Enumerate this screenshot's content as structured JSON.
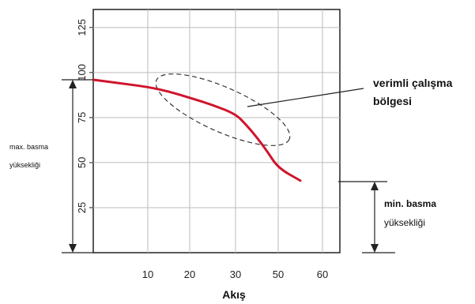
{
  "chart_data": {
    "type": "line",
    "xlabel": "Akış",
    "ylabel": "",
    "x_ticks": [
      "10",
      "20",
      "30",
      "50",
      "60"
    ],
    "y_ticks": [
      "25",
      "50",
      "75",
      "100",
      "125"
    ],
    "ylim": [
      0,
      135
    ],
    "grid": true,
    "series": [
      {
        "color": "#d0142c",
        "points": [
          [
            0,
            96
          ],
          [
            5,
            94
          ],
          [
            10,
            92
          ],
          [
            15,
            89.5
          ],
          [
            20,
            86
          ],
          [
            25,
            82
          ],
          [
            30,
            77
          ],
          [
            35,
            71
          ],
          [
            40,
            64
          ],
          [
            45,
            56
          ],
          [
            50,
            47
          ],
          [
            55,
            40
          ]
        ]
      }
    ],
    "annotations": {
      "efficient_region": "verimli çalışma bölgesi",
      "efficient_region_line1": "verimli çalışma",
      "efficient_region_line2": "bölgesi",
      "max_head_line1": "max. basma",
      "max_head_line2": "yüksekliği",
      "min_head_line1": "min. basma",
      "min_head_line2": "yüksekliği"
    }
  }
}
